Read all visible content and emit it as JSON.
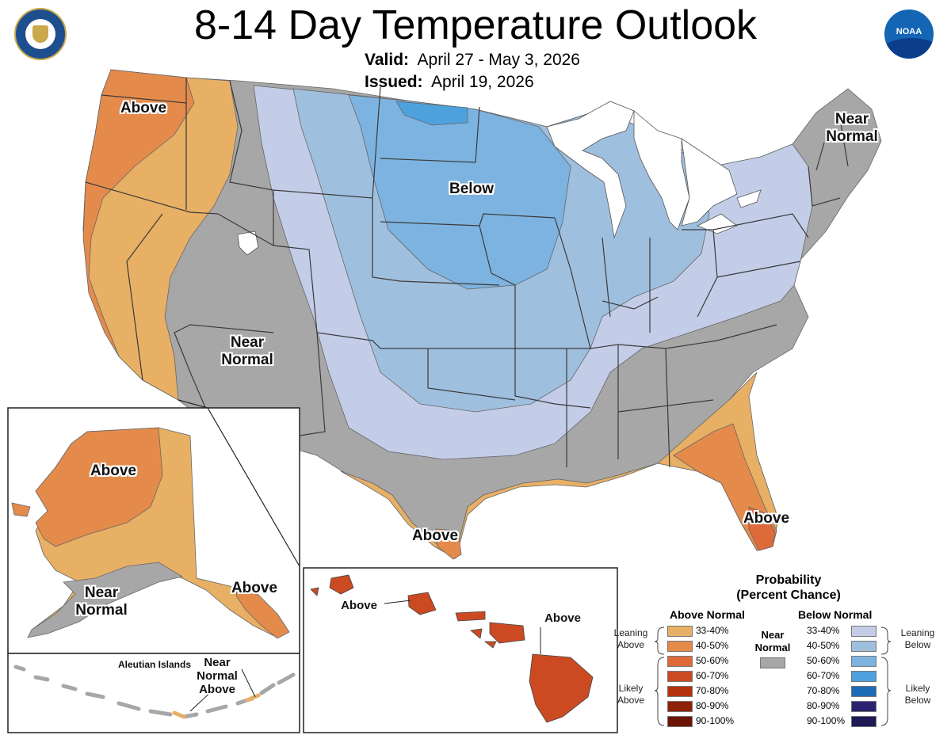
{
  "header": {
    "title": "8-14 Day Temperature Outlook",
    "valid_label": "Valid:",
    "valid_value": "April 27 - May 3, 2026",
    "issued_label": "Issued:",
    "issued_value": "April 19, 2026",
    "logos": {
      "left": "department-of-commerce-seal-icon",
      "right": "noaa-logo-icon"
    }
  },
  "map": {
    "colors": {
      "above_33_40": "#e8b065",
      "above_40_50": "#e48b4c",
      "above_50_60": "#de6a3a",
      "above_60_70": "#cc4a22",
      "near_normal": "#a7a7a7",
      "below_33_40": "#c4cde8",
      "below_40_50": "#9fbfde",
      "below_50_60": "#7db3e0",
      "below_60_70": "#4da1dd",
      "water": "#ffffff",
      "border": "#3a3a3a"
    },
    "labels": {
      "west_above": "Above",
      "northeast_near": "Near\nNormal",
      "north_below": "Below",
      "southwest_near": "Near\nNormal",
      "texas_above": "Above",
      "florida_above": "Above"
    },
    "alaska": {
      "above_upper": "Above",
      "near_normal": "Near\nNormal",
      "panhandle_above": "Above"
    },
    "aleutians": {
      "title": "Aleutian Islands",
      "near_normal_above": "Near\nNormal\nAbove"
    },
    "hawaii": {
      "left_above": "Above",
      "right_above": "Above"
    }
  },
  "legend": {
    "title": "Probability\n(Percent Chance)",
    "above_header": "Above Normal",
    "below_header": "Below Normal",
    "near_normal_label": "Near\nNormal",
    "leaning_above": "Leaning\nAbove",
    "likely_above": "Likely\nAbove",
    "leaning_below": "Leaning\nBelow",
    "likely_below": "Likely\nBelow",
    "above_bins": [
      {
        "range": "33-40%",
        "color": "#e8b065"
      },
      {
        "range": "40-50%",
        "color": "#e48b4c"
      },
      {
        "range": "50-60%",
        "color": "#de6a3a"
      },
      {
        "range": "60-70%",
        "color": "#cc4a22"
      },
      {
        "range": "70-80%",
        "color": "#b5320f"
      },
      {
        "range": "80-90%",
        "color": "#8f2108"
      },
      {
        "range": "90-100%",
        "color": "#6a1405"
      }
    ],
    "below_bins": [
      {
        "range": "33-40%",
        "color": "#c4cde8"
      },
      {
        "range": "40-50%",
        "color": "#9fbfde"
      },
      {
        "range": "50-60%",
        "color": "#7db3e0"
      },
      {
        "range": "60-70%",
        "color": "#4da1dd"
      },
      {
        "range": "70-80%",
        "color": "#1c6cb5"
      },
      {
        "range": "80-90%",
        "color": "#2a2470"
      },
      {
        "range": "90-100%",
        "color": "#1d1a55"
      }
    ],
    "near_normal_color": "#a7a7a7"
  }
}
